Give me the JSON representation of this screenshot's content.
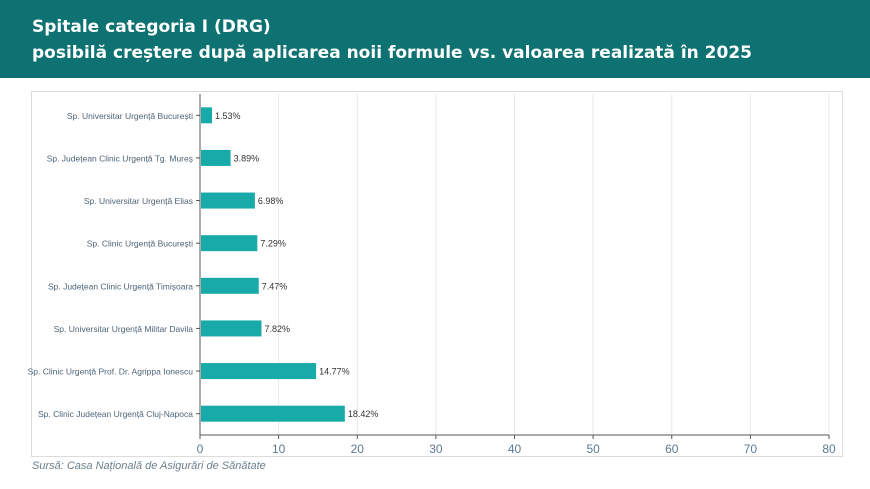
{
  "header": {
    "title_line1": "Spitale categoria I (DRG)",
    "title_line2": "posibilă creștere după aplicarea noii formule vs. valoarea realizată în 2025"
  },
  "source": "Sursă: Casa Națională de Asigurări de Sănătate",
  "colors": {
    "header_bg": "#0f7272",
    "bar": "#17aaa9"
  },
  "chart_data": {
    "type": "bar",
    "orientation": "horizontal",
    "title": "",
    "xlabel": "",
    "ylabel": "",
    "xlim": [
      0,
      80
    ],
    "xticks": [
      0,
      10,
      20,
      30,
      40,
      50,
      60,
      70,
      80
    ],
    "grid": "vertical",
    "categories": [
      "Sp. Universitar Urgență București",
      "Sp. Județean Clinic Urgență Tg. Mureș",
      "Sp. Universitar Urgență Elias",
      "Sp. Clinic Urgență București",
      "Sp. Județean Clinic Urgență Timișoara",
      "Sp. Universitar Urgență Militar Davila",
      "Sp. Clinic Urgență Prof. Dr. Agrippa Ionescu",
      "Sp. Clinic Județean Urgență Cluj-Napoca"
    ],
    "values": [
      1.53,
      3.89,
      6.98,
      7.29,
      7.47,
      7.82,
      14.77,
      18.42
    ],
    "labels": [
      "1.53%",
      "3.89%",
      "6.98%",
      "7.29%",
      "7.47%",
      "7.82%",
      "14.77%",
      "18.42%"
    ]
  }
}
